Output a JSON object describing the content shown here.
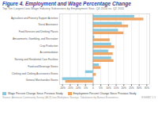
{
  "chart_data": {
    "type": "bar",
    "orientation": "horizontal",
    "title": "Figure 4. Employment and Wage Percentage Change",
    "subtitle": "Top Ten Largest Low-Wage Industry Subsectors by Employment Size, Q4 2014 vs. Q2 2011",
    "categories": [
      "Agriculture and Forestry Support Activities",
      "Social Assistance",
      "Food Services and Drinking Places",
      "Amusements, Gambling, and Recreation",
      "Crop Production",
      "Accommodation",
      "Nursing and Residential Care Facilities",
      "Food and Beverage Stores",
      "Clothing and Clothing Accessories Stores",
      "General Merchandise Stores"
    ],
    "series": [
      {
        "name": "Wage Percent Change Since Previous Study",
        "color": "#89c9e0",
        "values": [
          27.0,
          19.0,
          16.5,
          1.0,
          12.0,
          10.0,
          12.0,
          4.0,
          -5.0,
          -20.0
        ]
      },
      {
        "name": "Employment Percent Change Since Previous Study",
        "color": "#f0a868",
        "values": [
          33.0,
          23.0,
          20.0,
          11.0,
          14.0,
          13.0,
          13.5,
          5.0,
          2.0,
          -18.0
        ]
      }
    ],
    "xlim": [
      -22,
      37
    ],
    "xticks": [
      {
        "value": -20,
        "label": "-20%"
      },
      {
        "value": -15,
        "label": "-15%"
      },
      {
        "value": -10,
        "label": "-10%"
      },
      {
        "value": -5,
        "label": "-5%"
      },
      0,
      {
        "value": 5,
        "label": "5%"
      },
      {
        "value": 10,
        "label": "10%"
      },
      {
        "value": 15,
        "label": "15%"
      },
      {
        "value": 20,
        "label": "20%"
      },
      {
        "value": 25,
        "label": "25%"
      },
      {
        "value": 30,
        "label": "30%"
      },
      {
        "value": 35,
        "label": "35%"
      }
    ],
    "grid": true,
    "legend": "bottom",
    "source": "Source: American Community Survey (ACS) low-Workplace Surveys. Tabulations by Bureau Economics.",
    "footer": "EXHIBIT 1 II"
  }
}
